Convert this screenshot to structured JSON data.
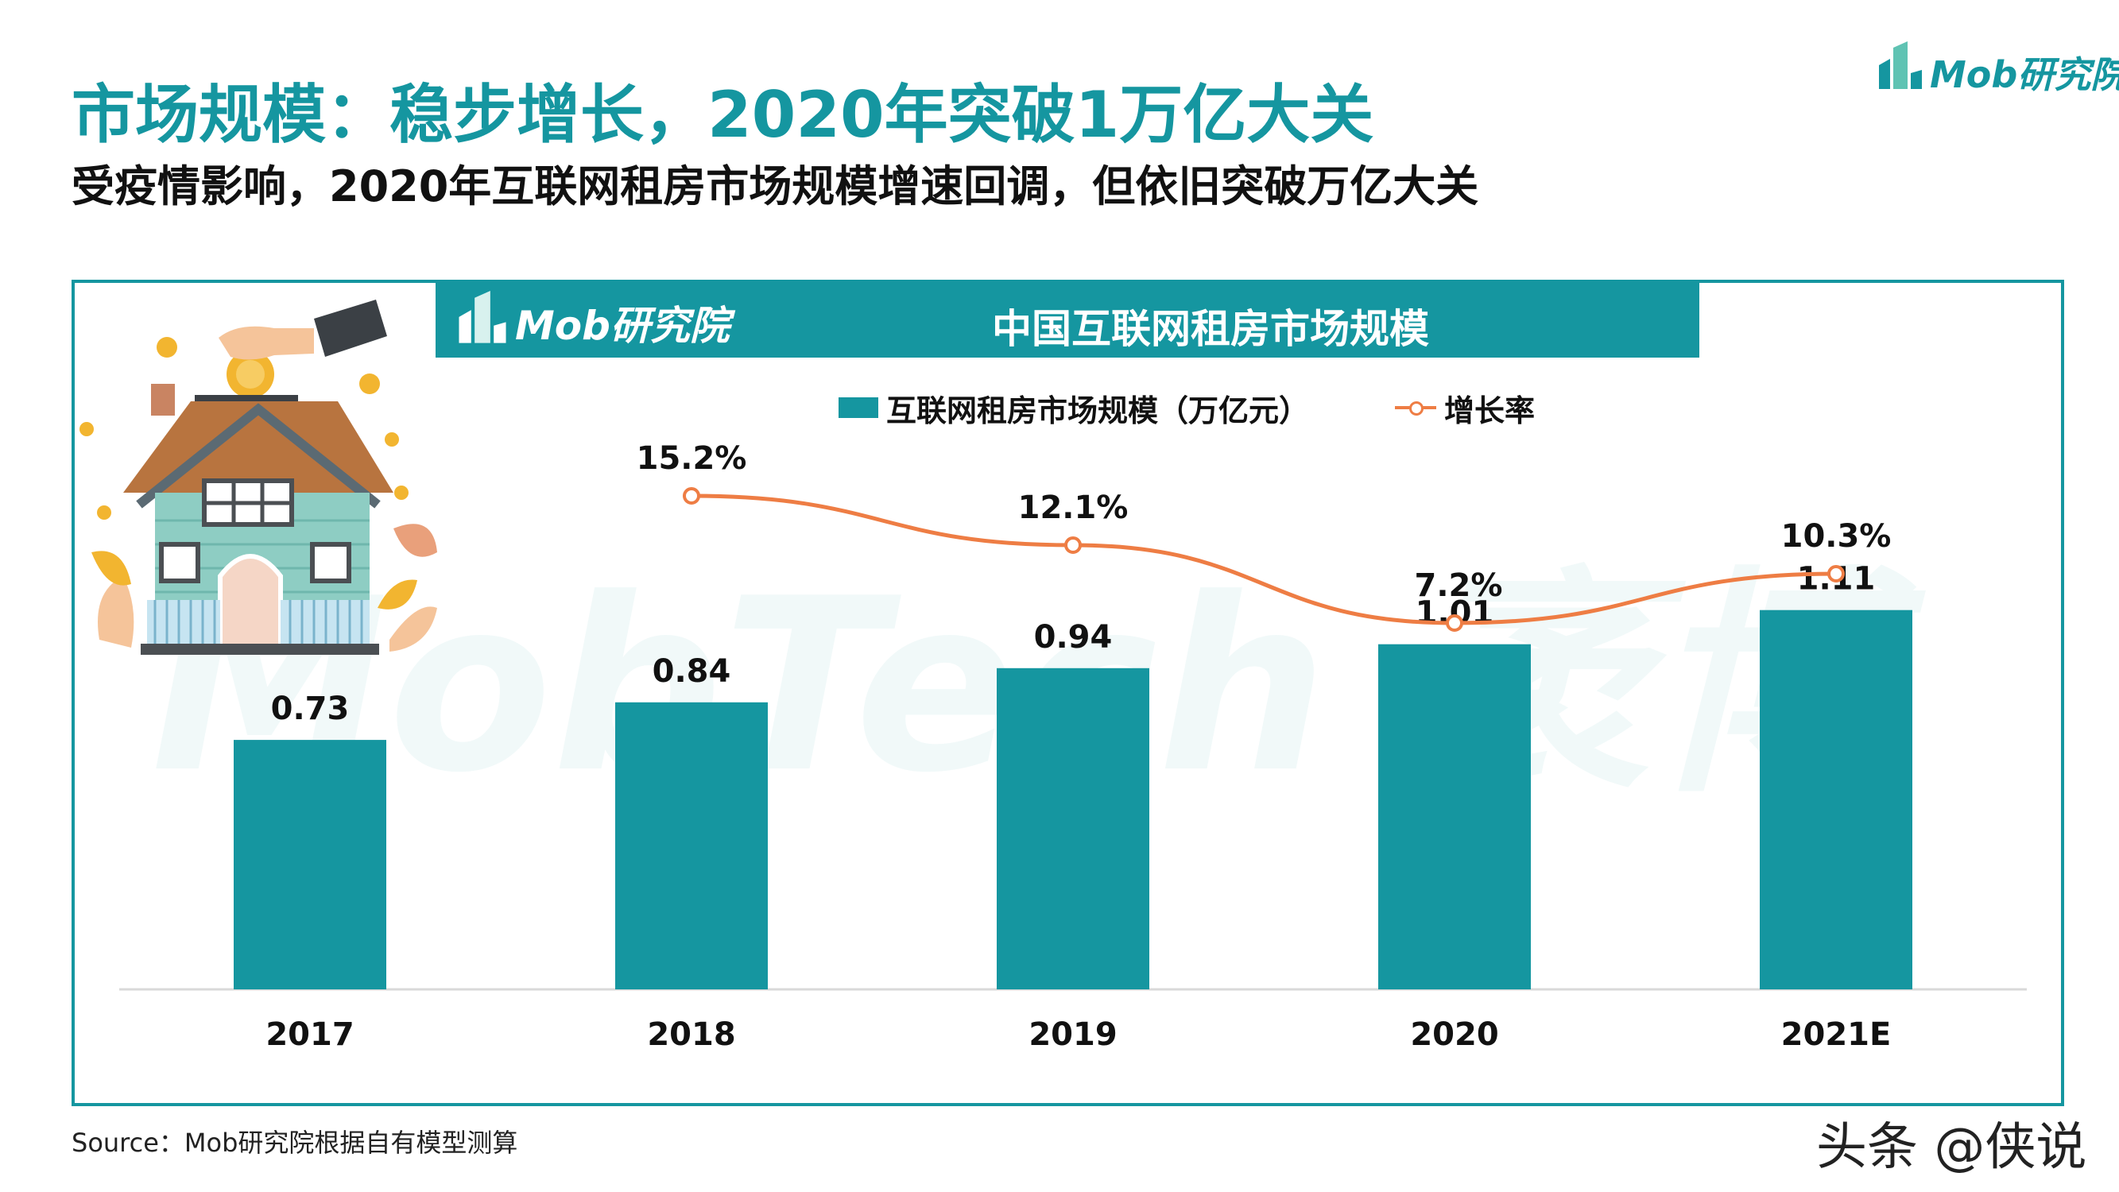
{
  "header": {
    "title": "市场规模：稳步增长，2020年突破1万亿大关",
    "subtitle": "受疫情影响，2020年互联网租房市场规模增速回调，但依旧突破万亿大关",
    "brand": "Mob研究院"
  },
  "banner": {
    "brand": "Mob研究院",
    "title": "中国互联网租房市场规模"
  },
  "watermark": "MobTech 袤博",
  "colors": {
    "bar": "#1596a0",
    "line": "#ee7d44",
    "title": "#1596a0"
  },
  "chart_data": {
    "type": "bar",
    "title": "中国互联网租房市场规模",
    "categories": [
      "2017",
      "2018",
      "2019",
      "2020",
      "2021E"
    ],
    "series": [
      {
        "name": "互联网租房市场规模（万亿元）",
        "type": "bar",
        "values": [
          0.73,
          0.84,
          0.94,
          1.01,
          1.11
        ],
        "labels": [
          "0.73",
          "0.84",
          "0.94",
          "1.01",
          "1.11"
        ]
      },
      {
        "name": "增长率",
        "type": "line",
        "values": [
          null,
          15.2,
          12.1,
          7.2,
          10.3
        ],
        "labels": [
          "",
          "15.2%",
          "12.1%",
          "7.2%",
          "10.3%"
        ]
      }
    ],
    "legend": "top-center",
    "grid": false
  },
  "footer": {
    "source": "Source：Mob研究院根据自有模型测算",
    "credit": "头条 @侠说"
  }
}
